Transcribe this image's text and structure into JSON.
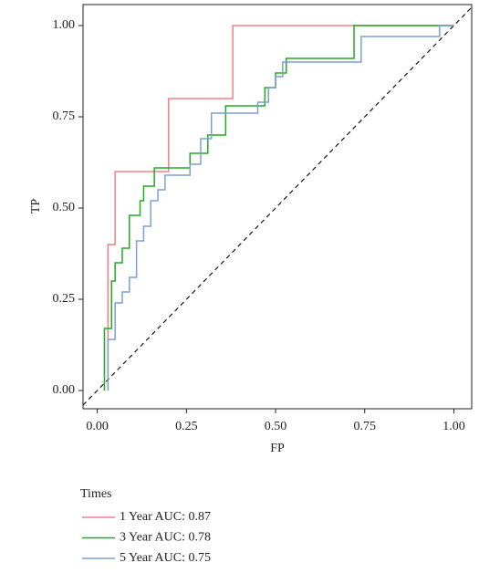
{
  "chart_data": {
    "type": "line",
    "step": true,
    "x_label": "FP",
    "y_label": "TP",
    "legend_title": "Times",
    "xlim": [
      -0.04,
      1.05
    ],
    "ylim": [
      -0.05,
      1.0575
    ],
    "xticks": [
      {
        "value": 0,
        "label": "0.00"
      },
      {
        "value": 0.25,
        "label": "0.25"
      },
      {
        "value": 0.5,
        "label": "0.50"
      },
      {
        "value": 0.75,
        "label": "0.75"
      },
      {
        "value": 1,
        "label": "1.00"
      }
    ],
    "yticks": [
      {
        "value": 0,
        "label": "0.00"
      },
      {
        "value": 0.25,
        "label": "0.25"
      },
      {
        "value": 0.5,
        "label": "0.50"
      },
      {
        "value": 0.75,
        "label": "0.75"
      },
      {
        "value": 1,
        "label": "1.00"
      }
    ],
    "diagonal": true,
    "series": [
      {
        "name": "1 Year AUC: 0.87",
        "color": "#f08080",
        "x": [
          0.03,
          0.03,
          0.05,
          0.05,
          0.2,
          0.2,
          0.38,
          0.38,
          1
        ],
        "values": [
          0,
          0.4,
          0.4,
          0.6,
          0.6,
          0.8,
          0.8,
          1,
          1
        ]
      },
      {
        "name": "3 Year AUC: 0.78",
        "color": "#22aa22",
        "x": [
          0.02,
          0.02,
          0.04,
          0.04,
          0.05,
          0.05,
          0.07,
          0.07,
          0.09,
          0.09,
          0.12,
          0.12,
          0.13,
          0.13,
          0.16,
          0.16,
          0.26,
          0.26,
          0.31,
          0.31,
          0.36,
          0.36,
          0.47,
          0.47,
          0.5,
          0.5,
          0.53,
          0.53,
          0.72,
          0.72,
          1
        ],
        "values": [
          0,
          0.17,
          0.17,
          0.3,
          0.3,
          0.35,
          0.35,
          0.39,
          0.39,
          0.48,
          0.48,
          0.52,
          0.52,
          0.56,
          0.56,
          0.61,
          0.61,
          0.65,
          0.65,
          0.7,
          0.7,
          0.78,
          0.78,
          0.83,
          0.83,
          0.87,
          0.87,
          0.91,
          0.91,
          1,
          1
        ]
      },
      {
        "name": "5 Year AUC: 0.75",
        "color": "#7b9fd8",
        "x": [
          0.03,
          0.03,
          0.05,
          0.05,
          0.07,
          0.07,
          0.09,
          0.09,
          0.11,
          0.11,
          0.13,
          0.13,
          0.15,
          0.15,
          0.17,
          0.17,
          0.19,
          0.19,
          0.26,
          0.26,
          0.29,
          0.29,
          0.32,
          0.32,
          0.45,
          0.45,
          0.48,
          0.48,
          0.5,
          0.5,
          0.52,
          0.52,
          0.74,
          0.74,
          0.96,
          0.96,
          1
        ],
        "values": [
          0,
          0.14,
          0.14,
          0.24,
          0.24,
          0.27,
          0.27,
          0.31,
          0.31,
          0.41,
          0.41,
          0.45,
          0.45,
          0.52,
          0.52,
          0.55,
          0.55,
          0.59,
          0.59,
          0.62,
          0.62,
          0.69,
          0.69,
          0.76,
          0.76,
          0.79,
          0.79,
          0.83,
          0.83,
          0.86,
          0.86,
          0.9,
          0.9,
          0.97,
          0.97,
          1,
          1
        ]
      }
    ]
  }
}
